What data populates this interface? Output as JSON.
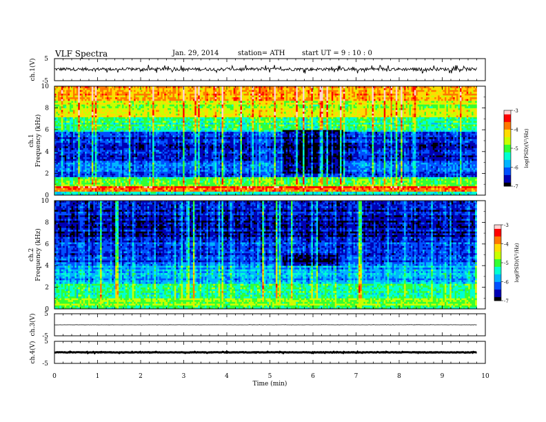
{
  "header": {
    "title": "VLF  Spectra",
    "date": "Jan. 29, 2014",
    "station": "station= ATH",
    "start_ut": "start  UT  =   9 : 10 : 0"
  },
  "colors": {
    "colormap": [
      "#000000",
      "#0000b4",
      "#0050ff",
      "#00b4ff",
      "#00ffd2",
      "#32ff32",
      "#c8ff00",
      "#ffdc00",
      "#ff7800",
      "#ff0000",
      "#ffd2d2"
    ],
    "trace": "#000000",
    "frame": "#000000"
  },
  "chart_data": [
    {
      "panel": "ch1-waveform",
      "type": "line",
      "ylabel": "ch.1(V)",
      "yticks": [
        "5",
        "-5"
      ],
      "ylim": [
        -5,
        5
      ],
      "xlim": [
        0,
        10
      ],
      "trace_span_min": [
        0,
        9.8
      ],
      "baseline_v": 0.2,
      "spike_range_v": [
        -2,
        2
      ]
    },
    {
      "panel": "ch1-spectrogram",
      "type": "heatmap",
      "ylabel": "ch.1",
      "ylabel2": "Frequency  (kHz)",
      "yticks": [
        "10",
        "8",
        "6",
        "4",
        "2",
        "0"
      ],
      "ylim": [
        0,
        10
      ],
      "xlim": [
        0,
        10
      ],
      "data_span_min": [
        0,
        9.8
      ],
      "colorbar": {
        "label": "log(PSD)(V²/Hz)",
        "ticks": [
          "-3",
          "-4",
          "-5",
          "-6",
          "-7"
        ],
        "range": [
          -7,
          -3
        ]
      },
      "bands_khz": [
        {
          "f": [
            0,
            0.3
          ],
          "log_psd": -5.6
        },
        {
          "f": [
            0.3,
            0.8
          ],
          "log_psd": -3.6
        },
        {
          "f": [
            0.8,
            1.6
          ],
          "log_psd": -5.0
        },
        {
          "f": [
            1.6,
            3.2
          ],
          "log_psd": -6.2
        },
        {
          "f": [
            3.2,
            5.8
          ],
          "log_psd": -6.5
        },
        {
          "f": [
            5.8,
            7.2
          ],
          "log_psd": -5.2
        },
        {
          "f": [
            7.2,
            8.6
          ],
          "log_psd": -4.6
        },
        {
          "f": [
            8.6,
            10
          ],
          "log_psd": -4.0
        }
      ],
      "quiet_window": {
        "t_min": [
          5.3,
          6.7
        ],
        "f_khz": [
          2,
          6
        ],
        "log_psd": -6.9
      }
    },
    {
      "panel": "ch2-spectrogram",
      "type": "heatmap",
      "ylabel": "ch.2",
      "ylabel2": "Frequency  (kHz)",
      "yticks": [
        "10",
        "8",
        "6",
        "4",
        "2",
        "0"
      ],
      "ylim": [
        0,
        10
      ],
      "xlim": [
        0,
        10
      ],
      "data_span_min": [
        0,
        9.8
      ],
      "colorbar": {
        "label": "log(PSD)(V²/Hz)",
        "ticks": [
          "-3",
          "-4",
          "-5",
          "-6",
          "-7"
        ],
        "range": [
          -7,
          -3
        ]
      },
      "bands_khz": [
        {
          "f": [
            0,
            0.3
          ],
          "log_psd": -5.2
        },
        {
          "f": [
            0.3,
            1.0
          ],
          "log_psd": -4.9
        },
        {
          "f": [
            1.0,
            2.4
          ],
          "log_psd": -5.3
        },
        {
          "f": [
            2.4,
            4.0
          ],
          "log_psd": -5.8
        },
        {
          "f": [
            4.0,
            6.4
          ],
          "log_psd": -6.3
        },
        {
          "f": [
            6.4,
            10
          ],
          "log_psd": -6.6
        }
      ],
      "quiet_window": {
        "t_min": [
          5.3,
          6.6
        ],
        "f_khz": [
          4,
          5
        ],
        "log_psd": -6.9
      }
    },
    {
      "panel": "ch3-waveform",
      "type": "line",
      "ylabel": "ch.3(V)",
      "yticks": [
        "5",
        "-5"
      ],
      "ylim": [
        -5,
        5
      ],
      "xlim": [
        0,
        10
      ],
      "trace_span_min": [
        0,
        9.8
      ],
      "baseline_v": 0.0,
      "spike_range_v": [
        -0.1,
        0.1
      ]
    },
    {
      "panel": "ch4-waveform",
      "type": "line",
      "ylabel": "ch.4(V)",
      "yticks": [
        "5",
        "-5"
      ],
      "ylim": [
        -5,
        5
      ],
      "xlim": [
        0,
        10
      ],
      "trace_span_min": [
        0,
        9.8
      ],
      "baseline_v": 0.0,
      "spike_range_v": [
        -0.3,
        0.3
      ]
    }
  ],
  "x_axis": {
    "label": "Time  (min)",
    "ticks": [
      "0",
      "1",
      "2",
      "3",
      "4",
      "5",
      "6",
      "7",
      "8",
      "9",
      "10"
    ]
  }
}
